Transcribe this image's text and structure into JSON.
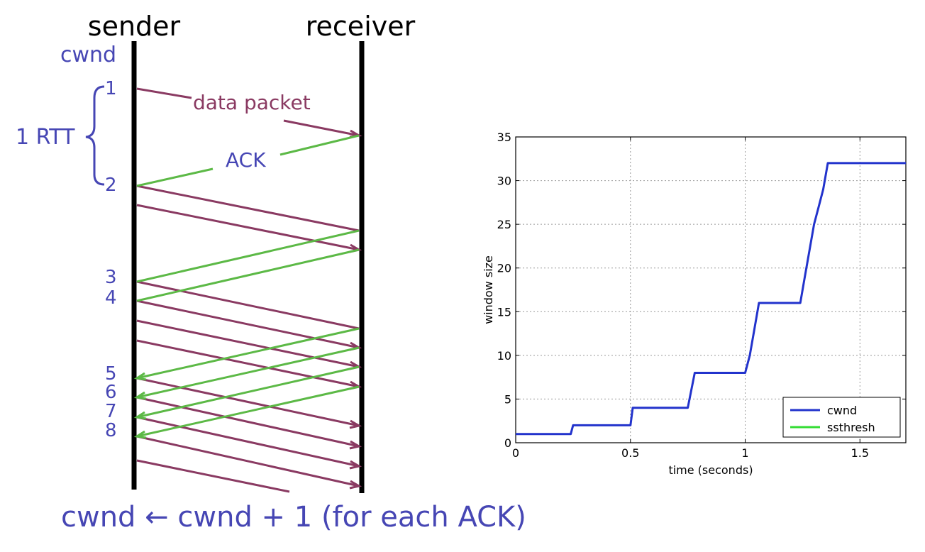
{
  "diagram": {
    "sender_label": "sender",
    "receiver_label": "receiver",
    "cwnd_label": "cwnd",
    "rtt_label": "1 RTT",
    "data_packet_label": "data packet",
    "ack_label": "ACK",
    "numbers": [
      "1",
      "2",
      "3",
      "4",
      "5",
      "6",
      "7",
      "8"
    ],
    "formula": "cwnd ← cwnd + 1 (for each ACK)",
    "colors": {
      "data": "#8a3a62",
      "ack": "#5cb946",
      "text_blue": "#4646b4"
    }
  },
  "chart_data": {
    "type": "line",
    "xlabel": "time (seconds)",
    "ylabel": "window size",
    "xlim": [
      0,
      1.7
    ],
    "ylim": [
      0,
      35
    ],
    "x_ticks": [
      0,
      0.5,
      1,
      1.5
    ],
    "x_tick_labels": [
      "0",
      "0.5",
      "1",
      "1.5"
    ],
    "y_ticks": [
      0,
      5,
      10,
      15,
      20,
      25,
      30,
      35
    ],
    "y_tick_labels": [
      "0",
      "5",
      "10",
      "15",
      "20",
      "25",
      "30",
      "35"
    ],
    "grid": true,
    "legend": "bottom-right",
    "series": [
      {
        "name": "cwnd",
        "color": "#2233cc",
        "x": [
          0,
          0.24,
          0.25,
          0.5,
          0.51,
          0.75,
          0.78,
          1.0,
          1.02,
          1.04,
          1.06,
          1.24,
          1.26,
          1.28,
          1.3,
          1.32,
          1.34,
          1.36,
          1.7
        ],
        "y": [
          1,
          1,
          2,
          2,
          4,
          4,
          8,
          8,
          10,
          13,
          16,
          16,
          19,
          22,
          25,
          27,
          29,
          32,
          32
        ]
      },
      {
        "name": "ssthresh",
        "color": "#33dd33",
        "x": [],
        "y": []
      }
    ]
  }
}
